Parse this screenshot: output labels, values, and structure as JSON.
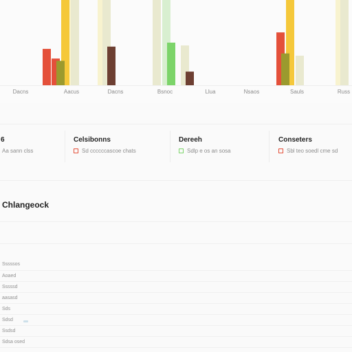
{
  "chart_data": {
    "type": "bar",
    "categories": [
      "Dacns",
      "Aacus",
      "Dacns",
      "Bsnoc",
      "Llua",
      "Nsaos",
      "Sauls",
      "Russ"
    ],
    "series": [
      {
        "values": [
          64,
          47,
          null,
          null,
          null,
          null,
          93,
          null
        ]
      },
      {
        "values": [
          null,
          43,
          null,
          null,
          null,
          null,
          56,
          null
        ]
      },
      {
        "values": [
          null,
          150,
          null,
          null,
          null,
          null,
          150,
          null
        ]
      },
      {
        "values": [
          null,
          150,
          150,
          null,
          null,
          null,
          null,
          150
        ]
      },
      {
        "values": [
          null,
          150,
          150,
          150,
          70,
          null,
          52,
          150
        ]
      },
      {
        "values": [
          null,
          null,
          68,
          null,
          24,
          null,
          null,
          null
        ]
      },
      {
        "values": [
          null,
          null,
          null,
          150,
          null,
          null,
          null,
          null
        ]
      },
      {
        "values": [
          null,
          null,
          null,
          75,
          null,
          null,
          null,
          95
        ]
      }
    ],
    "ylim": [
      0,
      150
    ],
    "colors": [
      "#e4503a",
      "#9b9a2e",
      "#f5c83a",
      "#f8f3cf",
      "#e9e9cf",
      "#6d3f32",
      "#d8efd0",
      "#7cd46a",
      "#cde8c5"
    ]
  },
  "stats": [
    {
      "title": "6",
      "sub": "Aa sann clss",
      "swatch": null
    },
    {
      "title": "Celsibonns",
      "sub": "Sd ccccccascoe chats",
      "swatch": "#e4503a"
    },
    {
      "title": "Dereeh",
      "sub": "Sdlp e os an sosa",
      "swatch": "#7cd46a"
    },
    {
      "title": "Conseters",
      "sub": "Sbl teo soedl cme sd",
      "swatch": "#e4503a"
    }
  ],
  "section": {
    "title": "Chlangeock"
  },
  "log_items": [
    "Sssssos",
    "Aoaed",
    "Sssssd",
    "aasasd",
    "Sds",
    "Sdsd",
    "Ssdsd",
    "Sdsa osed"
  ]
}
